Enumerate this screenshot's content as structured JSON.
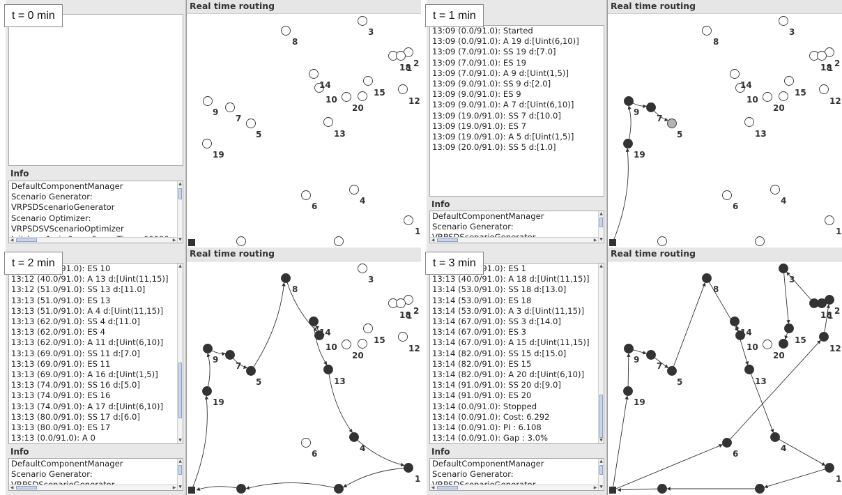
{
  "panel_title": "Real time routing",
  "info_title": "Info",
  "colors": {
    "visited": "#333333",
    "current": "#b3b3b3",
    "unvisited": "#ffffff",
    "depot": "#333333"
  },
  "nodes": [
    {
      "id": "1a",
      "label": "1"
    },
    {
      "id": "1b",
      "label": "1"
    },
    {
      "id": "2",
      "label": "2"
    },
    {
      "id": "3",
      "label": "3"
    },
    {
      "id": "4",
      "label": "4"
    },
    {
      "id": "5",
      "label": "5"
    },
    {
      "id": "6",
      "label": "6"
    },
    {
      "id": "7",
      "label": "7"
    },
    {
      "id": "8",
      "label": "8"
    },
    {
      "id": "9",
      "label": "9"
    },
    {
      "id": "10",
      "label": "10"
    },
    {
      "id": "12",
      "label": "12"
    },
    {
      "id": "13",
      "label": "13"
    },
    {
      "id": "14",
      "label": "14"
    },
    {
      "id": "15",
      "label": "15"
    },
    {
      "id": "18",
      "label": "18"
    },
    {
      "id": "19",
      "label": "19"
    },
    {
      "id": "20",
      "label": "20"
    }
  ],
  "snapshots": [
    {
      "time_label": "t = 0 min",
      "log": [],
      "info": [
        "DefaultComponentManager",
        "Scenario Generator:",
        " VRPSDScenarioGenerator",
        "Scenario Optimizer:",
        " VRPSDSVScenarioOptimizer",
        "Init (ns=1 ni=0 ns=0 maxTime=60000"
      ],
      "visited": [],
      "current": [],
      "route": []
    },
    {
      "time_label": "t = 1 min",
      "log": [
        "13:09 (0.0/91.0): Started",
        "13:09 (0.0/91.0): A  19 d:[Uint(6,10)]",
        "13:09 (7.0/91.0): SS 19 d:[7.0]",
        "13:09 (7.0/91.0): ES 19",
        "13:09 (7.0/91.0): A  9 d:[Uint(1,5)]",
        "13:09 (9.0/91.0): SS 9 d:[2.0]",
        "13:09 (9.0/91.0): ES 9",
        "13:09 (9.0/91.0): A  7 d:[Uint(6,10)]",
        "13:09 (19.0/91.0): SS 7 d:[10.0]",
        "13:09 (19.0/91.0): ES 7",
        "13:09 (19.0/91.0): A  5 d:[Uint(1,5)]",
        "13:09 (20.0/91.0): SS 5 d:[1.0]"
      ],
      "info": [
        "DefaultComponentManager",
        "Scenario Generator:",
        " VRPSDScenarioGenerator"
      ],
      "visited": [
        "19",
        "9",
        "7"
      ],
      "current": [
        "5"
      ],
      "route": [
        "depot",
        "19",
        "9",
        "7",
        "5"
      ]
    },
    {
      "time_label": "t = 2 min",
      "log": [
        "13:12 (31.0/91.0): ES 10",
        "13:12 (40.0/91.0): A  13 d:[Uint(11,15)]",
        "13:12 (51.0/91.0): SS 13 d:[11.0]",
        "13:13 (51.0/91.0): ES 13",
        "13:13 (51.0/91.0): A  4 d:[Uint(11,15)]",
        "13:13 (62.0/91.0): SS 4 d:[11.0]",
        "13:13 (62.0/91.0): ES 4",
        "13:13 (62.0/91.0): A  11 d:[Uint(6,10)]",
        "13:13 (69.0/91.0): SS 11 d:[7.0]",
        "13:13 (69.0/91.0): ES 11",
        "13:13 (69.0/91.0): A  16 d:[Uint(1,5)]",
        "13:13 (74.0/91.0): SS 16 d:[5.0]",
        "13:13 (74.0/91.0): ES 16",
        "13:13 (74.0/91.0): A  17 d:[Uint(6,10)]",
        "13:13 (80.0/91.0): SS 17 d:[6.0]",
        "13:13 (80.0/91.0): ES 17",
        "13:13 (0.0/91.0): A 0"
      ],
      "info": [
        "DefaultComponentManager",
        "Scenario Generator:",
        " VRPSDScenarioGenerator"
      ],
      "visited": [
        "19",
        "9",
        "7",
        "5",
        "8",
        "14b",
        "14",
        "13",
        "4",
        "1b",
        "b1",
        "b2"
      ],
      "current": [],
      "route": [
        "depot",
        "19",
        "9",
        "7",
        "5",
        "8",
        "14b",
        "14",
        "13",
        "4",
        "1b",
        "b1",
        "b2",
        "depot"
      ]
    },
    {
      "time_label": "t = 3 min",
      "log": [
        "13:13 (31.0/91.0): ES 1",
        "13:13 (40.0/91.0): A  18 d:[Uint(11,15)]",
        "13:14 (53.0/91.0): SS 18 d:[13.0]",
        "13:14 (53.0/91.0): ES 18",
        "13:14 (53.0/91.0): A  3 d:[Uint(11,15)]",
        "13:14 (67.0/91.0): SS 3 d:[14.0]",
        "13:14 (67.0/91.0): ES 3",
        "13:14 (67.0/91.0): A  15 d:[Uint(11,15)]",
        "13:14 (82.0/91.0): SS 15 d:[15.0]",
        "13:14 (82.0/91.0): ES 15",
        "13:14 (82.0/91.0): A  20 d:[Uint(6,10)]",
        "13:14 (91.0/91.0): SS 20 d:[9.0]",
        "13:14 (91.0/91.0): ES 20",
        "13:14 (0.0/91.0): Stopped",
        "13:14 (0.0/91.0): Cost: 6.292",
        "13:14 (0.0/91.0): PI  : 6.108",
        "13:14 (0.0/91.0): Gap : 3.0%"
      ],
      "info": [
        "DefaultComponentManager",
        "Scenario Generator:",
        " VRPSDScenarioGenerator"
      ],
      "visited": [
        "19",
        "9",
        "7",
        "5",
        "8",
        "14b",
        "14",
        "13",
        "4",
        "1b",
        "b1",
        "b2",
        "3",
        "18",
        "18b",
        "2",
        "2b",
        "15",
        "20",
        "12",
        "6"
      ],
      "current": [],
      "route": []
    }
  ]
}
